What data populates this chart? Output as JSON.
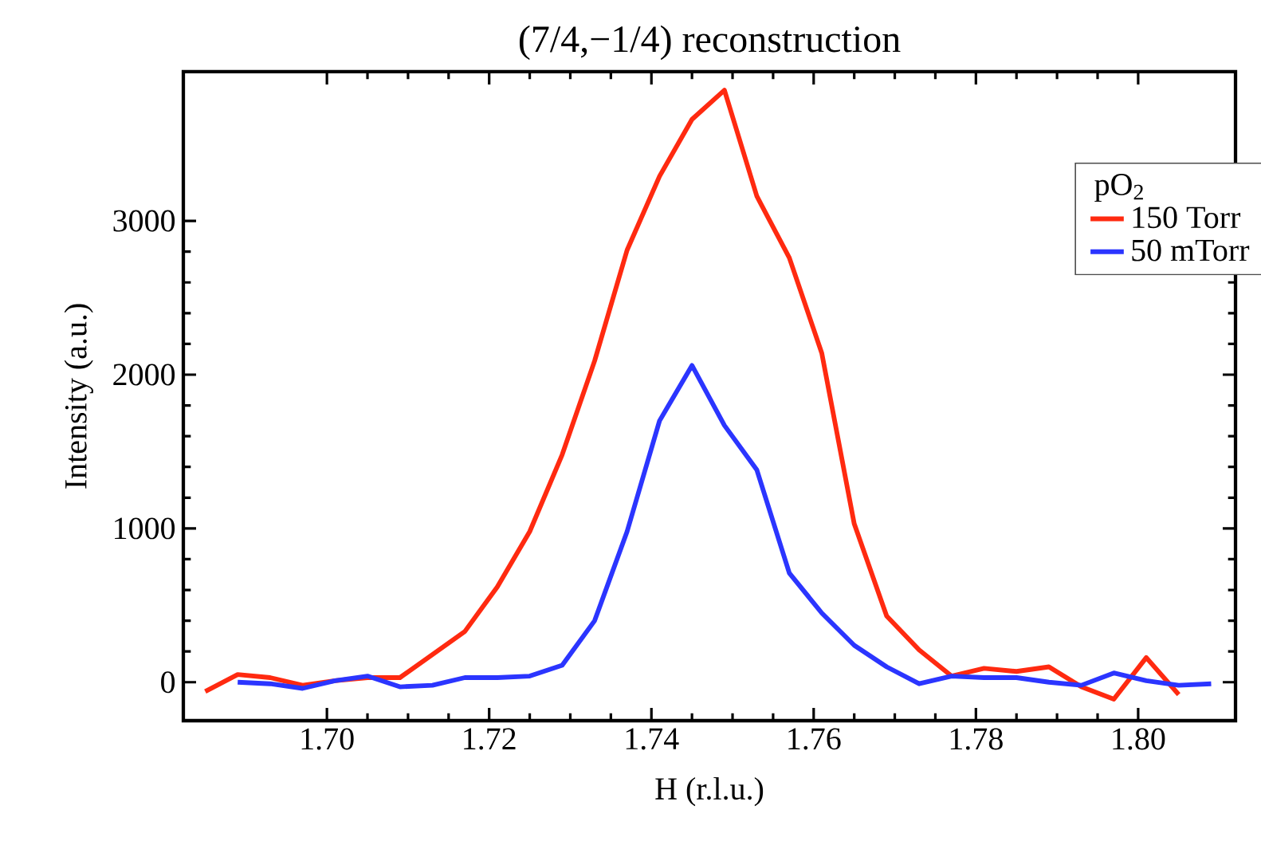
{
  "chart_data": {
    "type": "line",
    "title": "(7/4,−1/4) reconstruction",
    "xlabel": "H (r.l.u.)",
    "ylabel": "Intensity (a.u.)",
    "legend_title": "pO$_{2}$",
    "legend": "top right",
    "grid": false,
    "line_style": "solid",
    "marker": "none",
    "xlim": [
      1.6823,
      1.812
    ],
    "ylim": [
      -250,
      3970
    ],
    "xticks": [
      {
        "value": 1.7,
        "label": "1.70"
      },
      {
        "value": 1.72,
        "label": "1.72"
      },
      {
        "value": 1.74,
        "label": "1.74"
      },
      {
        "value": 1.76,
        "label": "1.76"
      },
      {
        "value": 1.78,
        "label": "1.78"
      },
      {
        "value": 1.8,
        "label": "1.80"
      }
    ],
    "yticks": [
      0,
      1000,
      2000,
      3000
    ],
    "series": [
      {
        "name": "150 Torr",
        "color": "#ff2a10",
        "x": [
          1.685,
          1.689,
          1.693,
          1.697,
          1.701,
          1.705,
          1.709,
          1.713,
          1.717,
          1.721,
          1.725,
          1.729,
          1.733,
          1.737,
          1.741,
          1.745,
          1.749,
          1.753,
          1.757,
          1.761,
          1.765,
          1.769,
          1.773,
          1.777,
          1.781,
          1.785,
          1.789,
          1.793,
          1.797,
          1.801,
          1.805
        ],
        "values": [
          -60,
          50,
          30,
          -20,
          10,
          30,
          30,
          180,
          330,
          620,
          980,
          1480,
          2090,
          2810,
          3290,
          3660,
          3850,
          3160,
          2760,
          2140,
          1030,
          430,
          210,
          40,
          90,
          70,
          100,
          -30,
          -110,
          160,
          -80
        ]
      },
      {
        "name": "50 mTorr",
        "color": "#2b35ff",
        "x": [
          1.689,
          1.693,
          1.697,
          1.701,
          1.705,
          1.709,
          1.713,
          1.717,
          1.721,
          1.725,
          1.729,
          1.733,
          1.737,
          1.741,
          1.745,
          1.749,
          1.753,
          1.757,
          1.761,
          1.765,
          1.769,
          1.773,
          1.777,
          1.781,
          1.785,
          1.789,
          1.793,
          1.797,
          1.801,
          1.805,
          1.809
        ],
        "values": [
          0,
          -10,
          -40,
          10,
          40,
          -30,
          -20,
          30,
          30,
          40,
          110,
          400,
          980,
          1700,
          2060,
          1670,
          1380,
          710,
          450,
          240,
          100,
          -10,
          40,
          30,
          30,
          0,
          -20,
          60,
          10,
          -20,
          -10
        ]
      }
    ]
  }
}
